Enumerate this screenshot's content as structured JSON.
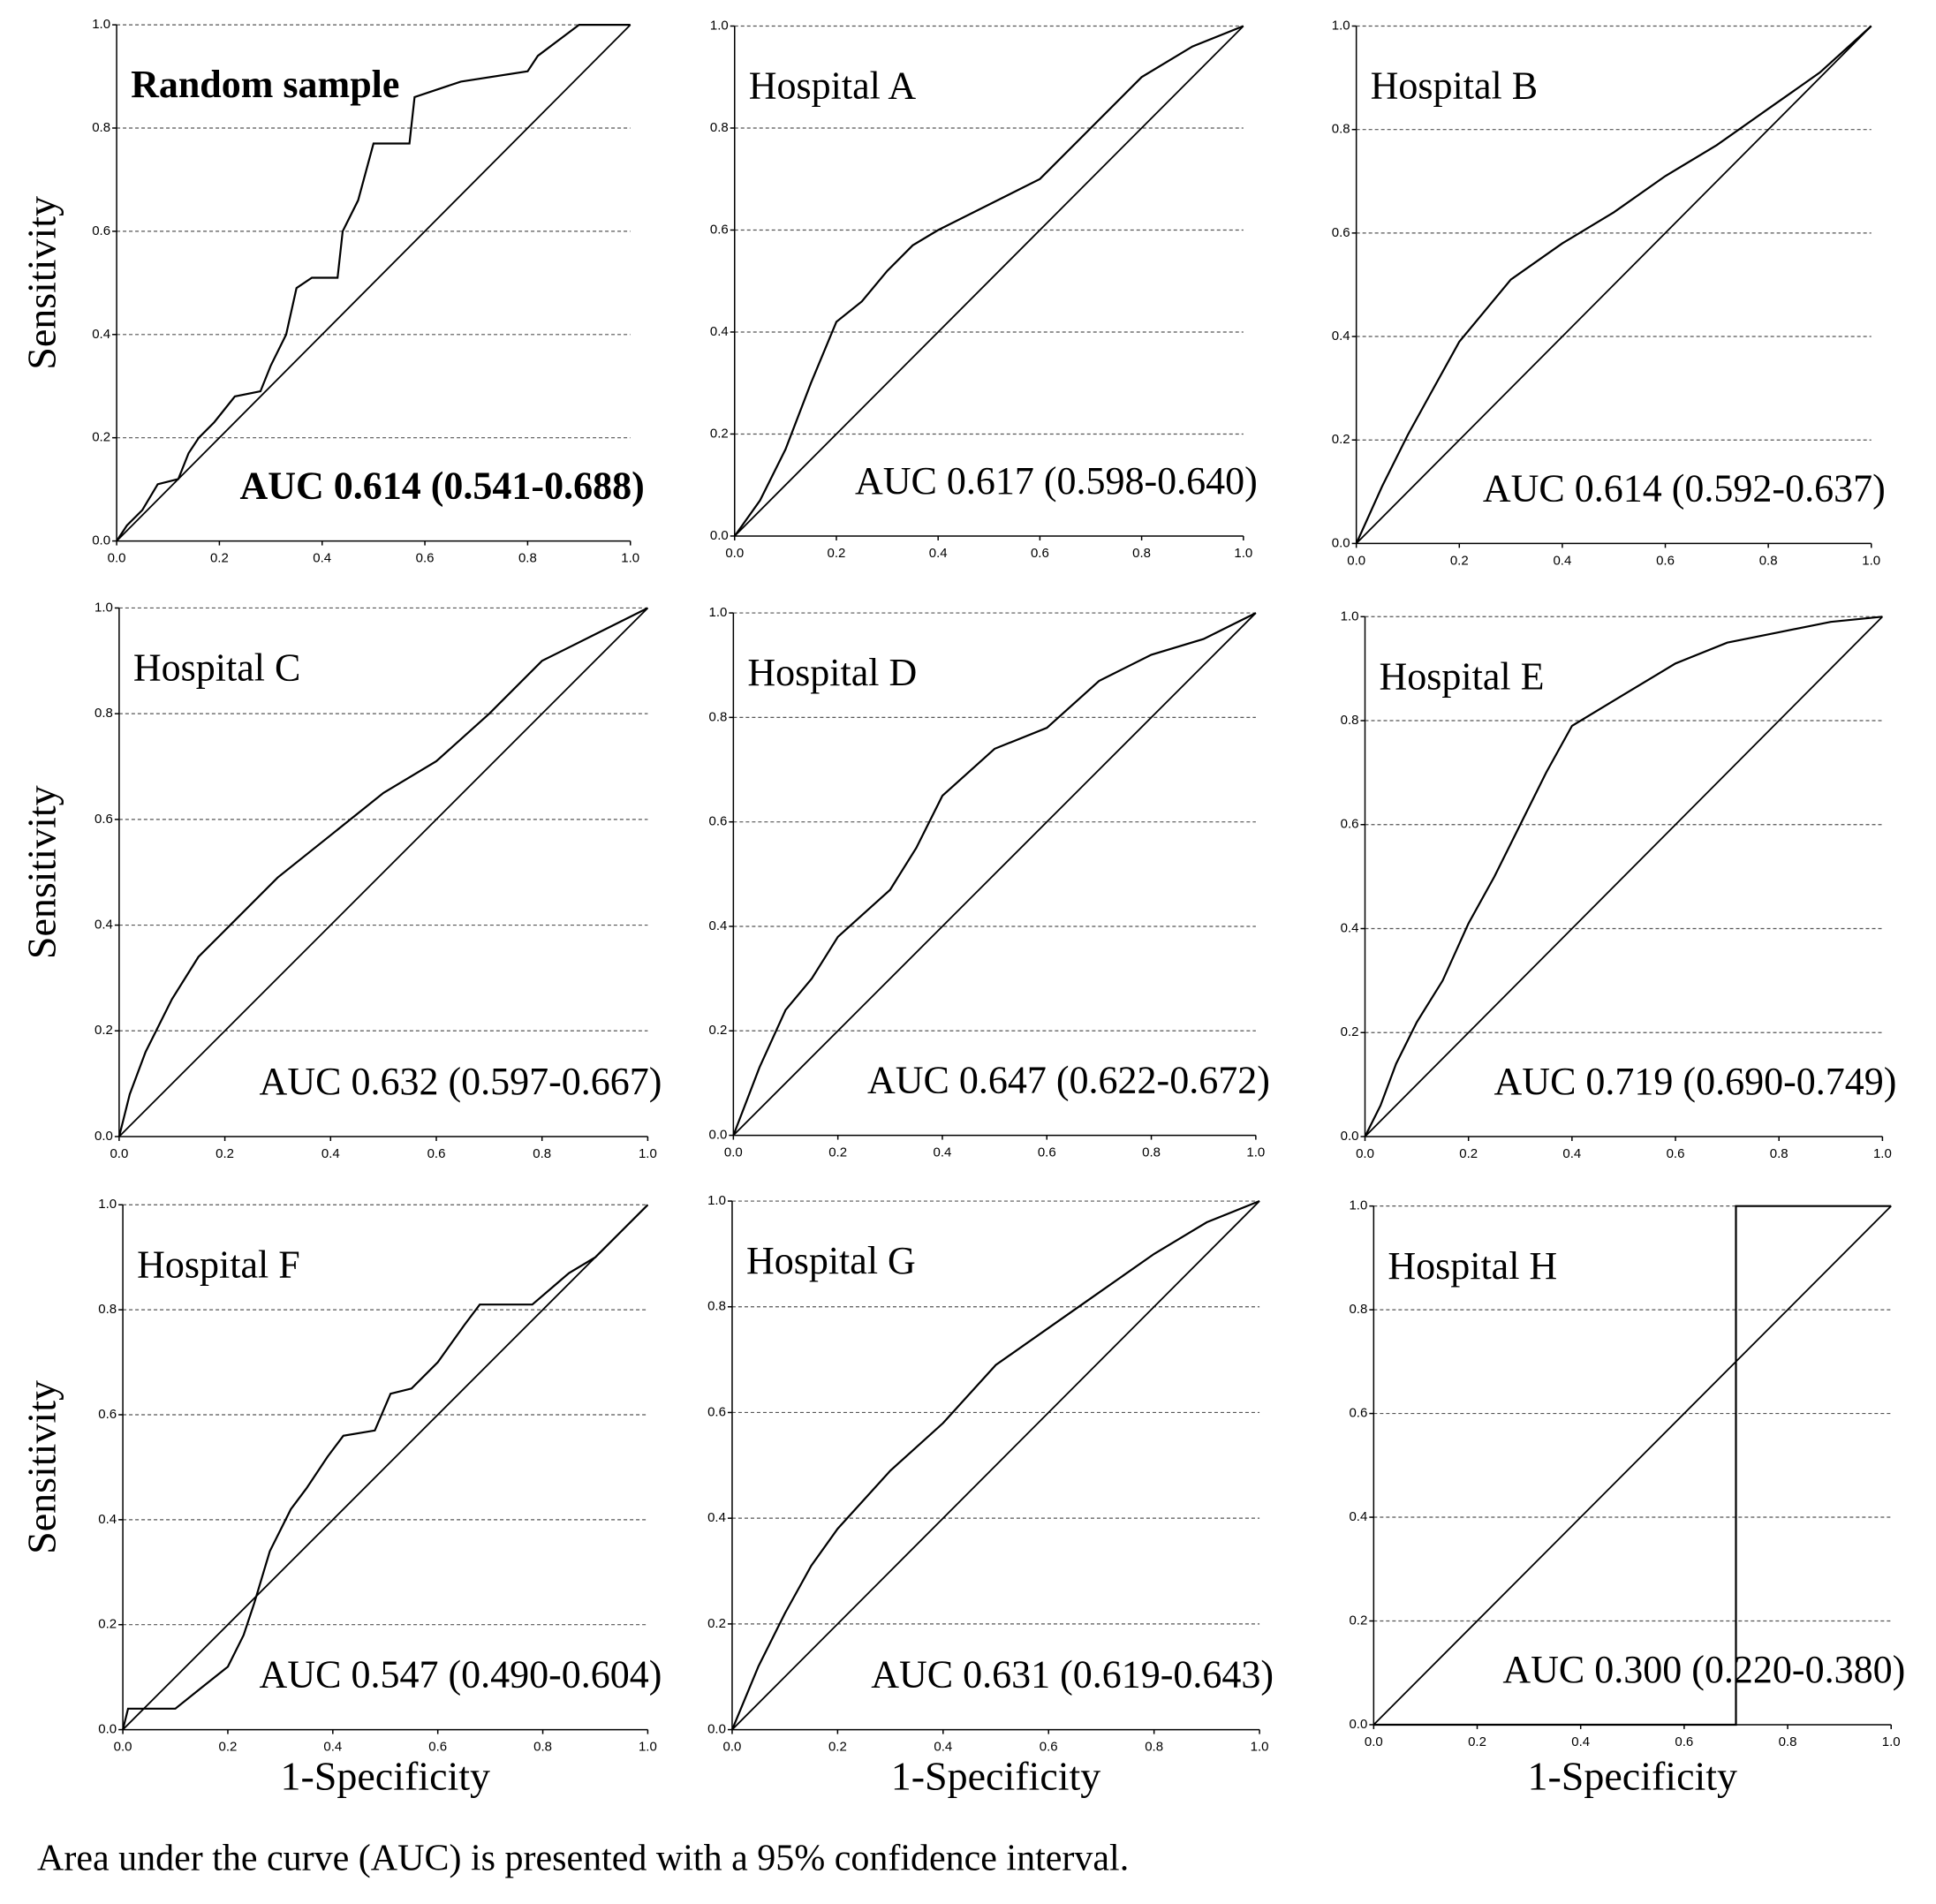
{
  "caption": "Area under the curve (AUC) is presented with a 95% confidence interval.",
  "chart_data": [
    {
      "type": "line",
      "title": "Random sample",
      "annotation": "AUC 0.614 (0.541-0.688)",
      "bold": true,
      "y_label": "Sensitivity",
      "x": [
        0,
        0.02,
        0.05,
        0.08,
        0.12,
        0.14,
        0.16,
        0.19,
        0.23,
        0.28,
        0.3,
        0.33,
        0.35,
        0.38,
        0.43,
        0.44,
        0.47,
        0.5,
        0.57,
        0.58,
        0.67,
        0.8,
        0.82,
        0.86,
        0.9,
        1
      ],
      "series": [
        {
          "color": "#000000",
          "values": [
            0,
            0.03,
            0.06,
            0.11,
            0.12,
            0.17,
            0.2,
            0.23,
            0.28,
            0.29,
            0.34,
            0.4,
            0.49,
            0.51,
            0.51,
            0.6,
            0.66,
            0.77,
            0.77,
            0.86,
            0.89,
            0.91,
            0.94,
            0.97,
            1,
            1
          ]
        }
      ],
      "xlim": [
        0,
        1
      ],
      "ylim": [
        0,
        1
      ],
      "grid": true,
      "xticks": [
        {
          "value": 0,
          "label": "0.0"
        },
        {
          "value": 0.2,
          "label": "0.2"
        },
        {
          "value": 0.4,
          "label": "0.4"
        },
        {
          "value": 0.6,
          "label": "0.6"
        },
        {
          "value": 0.8,
          "label": "0.8"
        },
        {
          "value": 1,
          "label": "1.0"
        }
      ],
      "yticks": [
        {
          "value": 0,
          "label": "0.0"
        },
        {
          "value": 0.2,
          "label": "0.2"
        },
        {
          "value": 0.4,
          "label": "0.4"
        },
        {
          "value": 0.6,
          "label": "0.6"
        },
        {
          "value": 0.8,
          "label": "0.8"
        },
        {
          "value": 1,
          "label": "1.0"
        }
      ]
    },
    {
      "type": "line",
      "title": "Hospital A",
      "annotation": "AUC 0.617 (0.598-0.640)",
      "x": [
        0,
        0.05,
        0.1,
        0.15,
        0.2,
        0.25,
        0.3,
        0.35,
        0.4,
        0.5,
        0.6,
        0.7,
        0.8,
        0.9,
        1
      ],
      "series": [
        {
          "color": "#000000",
          "values": [
            0,
            0.07,
            0.17,
            0.3,
            0.42,
            0.46,
            0.52,
            0.57,
            0.6,
            0.65,
            0.7,
            0.8,
            0.9,
            0.96,
            1
          ]
        }
      ],
      "xlim": [
        0,
        1
      ],
      "ylim": [
        0,
        1
      ],
      "grid": true,
      "xticks": [
        {
          "value": 0,
          "label": "0.0"
        },
        {
          "value": 0.2,
          "label": "0.2"
        },
        {
          "value": 0.4,
          "label": "0.4"
        },
        {
          "value": 0.6,
          "label": "0.6"
        },
        {
          "value": 0.8,
          "label": "0.8"
        },
        {
          "value": 1,
          "label": "1.0"
        }
      ],
      "yticks": [
        {
          "value": 0,
          "label": "0.0"
        },
        {
          "value": 0.2,
          "label": "0.2"
        },
        {
          "value": 0.4,
          "label": "0.4"
        },
        {
          "value": 0.6,
          "label": "0.6"
        },
        {
          "value": 0.8,
          "label": "0.8"
        },
        {
          "value": 1,
          "label": "1.0"
        }
      ]
    },
    {
      "type": "line",
      "title": "Hospital B",
      "annotation": "AUC 0.614 (0.592-0.637)",
      "x": [
        0,
        0.05,
        0.1,
        0.15,
        0.2,
        0.3,
        0.4,
        0.5,
        0.6,
        0.7,
        0.8,
        0.9,
        1
      ],
      "series": [
        {
          "color": "#000000",
          "values": [
            0,
            0.11,
            0.21,
            0.3,
            0.39,
            0.51,
            0.58,
            0.64,
            0.71,
            0.77,
            0.84,
            0.91,
            1
          ]
        }
      ],
      "xlim": [
        0,
        1
      ],
      "ylim": [
        0,
        1
      ],
      "grid": true,
      "xticks": [
        {
          "value": 0,
          "label": "0.0"
        },
        {
          "value": 0.2,
          "label": "0.2"
        },
        {
          "value": 0.4,
          "label": "0.4"
        },
        {
          "value": 0.6,
          "label": "0.6"
        },
        {
          "value": 0.8,
          "label": "0.8"
        },
        {
          "value": 1,
          "label": "1.0"
        }
      ],
      "yticks": [
        {
          "value": 0,
          "label": "0.0"
        },
        {
          "value": 0.2,
          "label": "0.2"
        },
        {
          "value": 0.4,
          "label": "0.4"
        },
        {
          "value": 0.6,
          "label": "0.6"
        },
        {
          "value": 0.8,
          "label": "0.8"
        },
        {
          "value": 1,
          "label": "1.0"
        }
      ]
    },
    {
      "type": "line",
      "title": "Hospital C",
      "annotation": "AUC 0.632 (0.597-0.667)",
      "y_label": "Sensitivity",
      "x": [
        0,
        0.02,
        0.05,
        0.1,
        0.15,
        0.2,
        0.3,
        0.4,
        0.5,
        0.6,
        0.7,
        0.8,
        0.9,
        1
      ],
      "series": [
        {
          "color": "#000000",
          "values": [
            0,
            0.08,
            0.16,
            0.26,
            0.34,
            0.39,
            0.49,
            0.57,
            0.65,
            0.71,
            0.8,
            0.9,
            0.95,
            1
          ]
        }
      ],
      "xlim": [
        0,
        1
      ],
      "ylim": [
        0,
        1
      ],
      "grid": true,
      "xticks": [
        {
          "value": 0,
          "label": "0.0"
        },
        {
          "value": 0.2,
          "label": "0.2"
        },
        {
          "value": 0.4,
          "label": "0.4"
        },
        {
          "value": 0.6,
          "label": "0.6"
        },
        {
          "value": 0.8,
          "label": "0.8"
        },
        {
          "value": 1,
          "label": "1.0"
        }
      ],
      "yticks": [
        {
          "value": 0,
          "label": "0.0"
        },
        {
          "value": 0.2,
          "label": "0.2"
        },
        {
          "value": 0.4,
          "label": "0.4"
        },
        {
          "value": 0.6,
          "label": "0.6"
        },
        {
          "value": 0.8,
          "label": "0.8"
        },
        {
          "value": 1,
          "label": "1.0"
        }
      ]
    },
    {
      "type": "line",
      "title": "Hospital D",
      "annotation": "AUC 0.647 (0.622-0.672)",
      "x": [
        0,
        0.05,
        0.1,
        0.15,
        0.2,
        0.3,
        0.35,
        0.4,
        0.5,
        0.6,
        0.7,
        0.8,
        0.9,
        1
      ],
      "series": [
        {
          "color": "#000000",
          "values": [
            0,
            0.13,
            0.24,
            0.3,
            0.38,
            0.47,
            0.55,
            0.65,
            0.74,
            0.78,
            0.87,
            0.92,
            0.95,
            1
          ]
        }
      ],
      "xlim": [
        0,
        1
      ],
      "ylim": [
        0,
        1
      ],
      "grid": true,
      "xticks": [
        {
          "value": 0,
          "label": "0.0"
        },
        {
          "value": 0.2,
          "label": "0.2"
        },
        {
          "value": 0.4,
          "label": "0.4"
        },
        {
          "value": 0.6,
          "label": "0.6"
        },
        {
          "value": 0.8,
          "label": "0.8"
        },
        {
          "value": 1,
          "label": "1.0"
        }
      ],
      "yticks": [
        {
          "value": 0,
          "label": "0.0"
        },
        {
          "value": 0.2,
          "label": "0.2"
        },
        {
          "value": 0.4,
          "label": "0.4"
        },
        {
          "value": 0.6,
          "label": "0.6"
        },
        {
          "value": 0.8,
          "label": "0.8"
        },
        {
          "value": 1,
          "label": "1.0"
        }
      ]
    },
    {
      "type": "line",
      "title": "Hospital E",
      "annotation": "AUC 0.719 (0.690-0.749)",
      "x": [
        0,
        0.03,
        0.06,
        0.1,
        0.15,
        0.2,
        0.25,
        0.3,
        0.35,
        0.4,
        0.5,
        0.6,
        0.7,
        0.8,
        0.9,
        1
      ],
      "series": [
        {
          "color": "#000000",
          "values": [
            0,
            0.06,
            0.14,
            0.22,
            0.3,
            0.41,
            0.5,
            0.6,
            0.7,
            0.79,
            0.85,
            0.91,
            0.95,
            0.97,
            0.99,
            1
          ]
        }
      ],
      "xlim": [
        0,
        1
      ],
      "ylim": [
        0,
        1
      ],
      "grid": true,
      "xticks": [
        {
          "value": 0,
          "label": "0.0"
        },
        {
          "value": 0.2,
          "label": "0.2"
        },
        {
          "value": 0.4,
          "label": "0.4"
        },
        {
          "value": 0.6,
          "label": "0.6"
        },
        {
          "value": 0.8,
          "label": "0.8"
        },
        {
          "value": 1,
          "label": "1.0"
        }
      ],
      "yticks": [
        {
          "value": 0,
          "label": "0.0"
        },
        {
          "value": 0.2,
          "label": "0.2"
        },
        {
          "value": 0.4,
          "label": "0.4"
        },
        {
          "value": 0.6,
          "label": "0.6"
        },
        {
          "value": 0.8,
          "label": "0.8"
        },
        {
          "value": 1,
          "label": "1.0"
        }
      ]
    },
    {
      "type": "line",
      "title": "Hospital F",
      "annotation": "AUC 0.547 (0.490-0.604)",
      "y_label": "Sensitivity",
      "x_label": "1-Specificity",
      "x": [
        0,
        0.01,
        0.1,
        0.15,
        0.2,
        0.23,
        0.25,
        0.28,
        0.32,
        0.35,
        0.39,
        0.42,
        0.48,
        0.51,
        0.55,
        0.6,
        0.65,
        0.68,
        0.78,
        0.85,
        0.9,
        0.95,
        1
      ],
      "series": [
        {
          "color": "#000000",
          "values": [
            0,
            0.04,
            0.04,
            0.08,
            0.12,
            0.18,
            0.24,
            0.34,
            0.42,
            0.46,
            0.52,
            0.56,
            0.57,
            0.64,
            0.65,
            0.7,
            0.77,
            0.81,
            0.81,
            0.87,
            0.9,
            0.95,
            1
          ]
        }
      ],
      "xlim": [
        0,
        1
      ],
      "ylim": [
        0,
        1
      ],
      "grid": true,
      "xticks": [
        {
          "value": 0,
          "label": "0.0"
        },
        {
          "value": 0.2,
          "label": "0.2"
        },
        {
          "value": 0.4,
          "label": "0.4"
        },
        {
          "value": 0.6,
          "label": "0.6"
        },
        {
          "value": 0.8,
          "label": "0.8"
        },
        {
          "value": 1,
          "label": "1.0"
        }
      ],
      "yticks": [
        {
          "value": 0,
          "label": "0.0"
        },
        {
          "value": 0.2,
          "label": "0.2"
        },
        {
          "value": 0.4,
          "label": "0.4"
        },
        {
          "value": 0.6,
          "label": "0.6"
        },
        {
          "value": 0.8,
          "label": "0.8"
        },
        {
          "value": 1,
          "label": "1.0"
        }
      ]
    },
    {
      "type": "line",
      "title": "Hospital G",
      "annotation": "AUC 0.631 (0.619-0.643)",
      "x_label": "1-Specificity",
      "x": [
        0,
        0.05,
        0.1,
        0.15,
        0.2,
        0.3,
        0.4,
        0.5,
        0.6,
        0.7,
        0.8,
        0.9,
        1
      ],
      "series": [
        {
          "color": "#000000",
          "values": [
            0,
            0.12,
            0.22,
            0.31,
            0.38,
            0.49,
            0.58,
            0.69,
            0.76,
            0.83,
            0.9,
            0.96,
            1
          ]
        }
      ],
      "xlim": [
        0,
        1
      ],
      "ylim": [
        0,
        1
      ],
      "grid": true,
      "xticks": [
        {
          "value": 0,
          "label": "0.0"
        },
        {
          "value": 0.2,
          "label": "0.2"
        },
        {
          "value": 0.4,
          "label": "0.4"
        },
        {
          "value": 0.6,
          "label": "0.6"
        },
        {
          "value": 0.8,
          "label": "0.8"
        },
        {
          "value": 1,
          "label": "1.0"
        }
      ],
      "yticks": [
        {
          "value": 0,
          "label": "0.0"
        },
        {
          "value": 0.2,
          "label": "0.2"
        },
        {
          "value": 0.4,
          "label": "0.4"
        },
        {
          "value": 0.6,
          "label": "0.6"
        },
        {
          "value": 0.8,
          "label": "0.8"
        },
        {
          "value": 1,
          "label": "1.0"
        }
      ]
    },
    {
      "type": "line",
      "title": "Hospital H",
      "annotation": "AUC 0.300 (0.220-0.380)",
      "x_label": "1-Specificity",
      "x": [
        0,
        0.7,
        0.7,
        1
      ],
      "series": [
        {
          "color": "#000000",
          "values": [
            0,
            0,
            1,
            1
          ]
        }
      ],
      "xlim": [
        0,
        1
      ],
      "ylim": [
        0,
        1
      ],
      "grid": true,
      "xticks": [
        {
          "value": 0,
          "label": "0.0"
        },
        {
          "value": 0.2,
          "label": "0.2"
        },
        {
          "value": 0.4,
          "label": "0.4"
        },
        {
          "value": 0.6,
          "label": "0.6"
        },
        {
          "value": 0.8,
          "label": "0.8"
        },
        {
          "value": 1,
          "label": "1.0"
        }
      ],
      "yticks": [
        {
          "value": 0,
          "label": "0.0"
        },
        {
          "value": 0.2,
          "label": "0.2"
        },
        {
          "value": 0.4,
          "label": "0.4"
        },
        {
          "value": 0.6,
          "label": "0.6"
        },
        {
          "value": 0.8,
          "label": "0.8"
        },
        {
          "value": 1,
          "label": "1.0"
        }
      ]
    }
  ]
}
